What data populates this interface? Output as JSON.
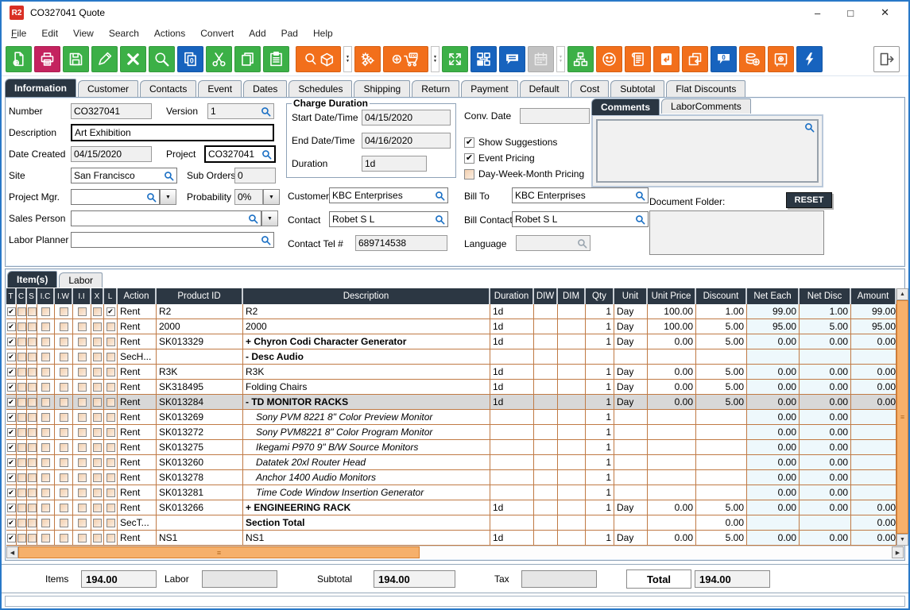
{
  "window": {
    "logo_text": "R2",
    "title": "CO327041 Quote",
    "minimize": "–",
    "maximize": "□",
    "close": "✕"
  },
  "menu": {
    "items": [
      "File",
      "Edit",
      "View",
      "Search",
      "Actions",
      "Convert",
      "Add",
      "Pad",
      "Help"
    ]
  },
  "toolbar": {
    "buttons": [
      {
        "name": "new-document",
        "icon": "doc-new",
        "color": "#3cb047"
      },
      {
        "name": "print",
        "icon": "printer",
        "color": "#c4235f"
      },
      {
        "name": "save",
        "icon": "floppy",
        "color": "#3cb047"
      },
      {
        "name": "edit",
        "icon": "pencil",
        "color": "#3cb047"
      },
      {
        "name": "delete",
        "icon": "x-mark",
        "color": "#3cb047"
      },
      {
        "name": "search",
        "icon": "magnifier",
        "color": "#3cb047"
      },
      {
        "name": "duplicate-count",
        "icon": "pages-zero",
        "color": "#1763be"
      },
      {
        "name": "cut",
        "icon": "scissors",
        "color": "#3cb047"
      },
      {
        "name": "copy",
        "icon": "copy-pages",
        "color": "#3cb047"
      },
      {
        "name": "paste",
        "icon": "clipboard-paste",
        "color": "#3cb047"
      },
      {
        "name": "search-items",
        "icon": "magnifier-box",
        "color": "#f26f1b",
        "wide": true,
        "dropdown": true,
        "gap": true
      },
      {
        "name": "settings",
        "icon": "gears",
        "color": "#f26f1b"
      },
      {
        "name": "create-po",
        "icon": "cart-po",
        "color": "#f26f1b",
        "wide": true,
        "dropdown": true
      },
      {
        "name": "expand",
        "icon": "expand-arrows",
        "color": "#3cb047"
      },
      {
        "name": "workflow",
        "icon": "workflow-blocks",
        "color": "#1763be"
      },
      {
        "name": "comments",
        "icon": "speech-bubble",
        "color": "#1763be"
      },
      {
        "name": "calendar",
        "icon": "calendar",
        "color": "#c2c2c2",
        "disabled": true,
        "dropdown": true
      },
      {
        "name": "hierarchy",
        "icon": "tree",
        "color": "#3cb047"
      },
      {
        "name": "contacts-smiley",
        "icon": "smiley",
        "color": "#f26f1b"
      },
      {
        "name": "notes-scroll",
        "icon": "scroll",
        "color": "#f26f1b"
      },
      {
        "name": "return-item",
        "icon": "return-arrow",
        "color": "#f26f1b"
      },
      {
        "name": "return-box",
        "icon": "box-return",
        "color": "#f26f1b"
      },
      {
        "name": "message-count",
        "icon": "bubble-zero",
        "color": "#1763be"
      },
      {
        "name": "add-funds",
        "icon": "coins-plus",
        "color": "#f26f1b"
      },
      {
        "name": "vault",
        "icon": "safe",
        "color": "#f26f1b"
      },
      {
        "name": "quick-actions",
        "icon": "lightning",
        "color": "#1763be"
      }
    ],
    "exit": {
      "name": "exit",
      "icon": "exit"
    }
  },
  "main_tabs": {
    "active": "Information",
    "items": [
      "Information",
      "Customer",
      "Contacts",
      "Event",
      "Dates",
      "Schedules",
      "Shipping",
      "Return",
      "Payment",
      "Default",
      "Cost",
      "Subtotal",
      "Flat Discounts"
    ]
  },
  "form": {
    "number_label": "Number",
    "number": "CO327041",
    "version_label": "Version",
    "version": "1",
    "description_label": "Description",
    "description": "Art Exhibition",
    "date_created_label": "Date Created",
    "date_created": "04/15/2020",
    "project_label": "Project",
    "project": "CO327041",
    "site_label": "Site",
    "site": "San Francisco",
    "sub_orders_label": "Sub Orders",
    "sub_orders": "0",
    "project_mgr_label": "Project Mgr.",
    "project_mgr": "",
    "probability_label": "Probability",
    "probability": "0%",
    "sales_person_label": "Sales Person",
    "sales_person": "",
    "labor_planner_label": "Labor Planner",
    "labor_planner": "",
    "charge_duration_legend": "Charge Duration",
    "start_label": "Start Date/Time",
    "start": "04/15/2020",
    "end_label": "End Date/Time",
    "end": "04/16/2020",
    "duration_label": "Duration",
    "duration": "1d",
    "conv_date_label": "Conv. Date",
    "conv_date": "",
    "checkboxes": [
      {
        "label": "Show Suggestions",
        "checked": true
      },
      {
        "label": "Event Pricing",
        "checked": true
      },
      {
        "label": "Day-Week-Month Pricing",
        "checked": false
      }
    ],
    "customer_label": "Customer",
    "customer": "KBC Enterprises",
    "bill_to_label": "Bill To",
    "bill_to": "KBC Enterprises",
    "contact_label": "Contact",
    "contact": "Robet S L",
    "bill_contact_label": "Bill Contact",
    "bill_contact": "Robet S L",
    "contact_tel_label": "Contact Tel #",
    "contact_tel": "689714538",
    "language_label": "Language",
    "language": ""
  },
  "comments": {
    "tabs": [
      "Comments",
      "LaborComments"
    ],
    "active": "Comments",
    "text": "",
    "document_folder_label": "Document Folder:",
    "reset_label": "RESET",
    "document_folder_text": ""
  },
  "items_section": {
    "tabs": [
      "Item(s)",
      "Labor"
    ],
    "active": "Item(s)"
  },
  "grid": {
    "checkbox_headers": [
      "T",
      "C",
      "S",
      "I.C",
      "I.W",
      "I.I",
      "X",
      "L"
    ],
    "headers": [
      "Action",
      "Product ID",
      "Description",
      "Duration",
      "DIW",
      "DIM",
      "Qty",
      "Unit",
      "Unit Price",
      "Discount",
      "Net Each",
      "Net Disc",
      "Amount"
    ],
    "rows": [
      {
        "t": true,
        "l": true,
        "action": "Rent",
        "product": "R2",
        "desc": "R2",
        "style": "normal",
        "duration": "1d",
        "diw": "",
        "dim": "",
        "qty": "1",
        "unit": "Day",
        "unit_price": "100.00",
        "discount": "1.00",
        "net_each": "99.00",
        "net_disc": "1.00",
        "amount": "99.00",
        "selected": false
      },
      {
        "t": true,
        "l": false,
        "action": "Rent",
        "product": "2000",
        "desc": "2000",
        "style": "normal",
        "duration": "1d",
        "diw": "",
        "dim": "",
        "qty": "1",
        "unit": "Day",
        "unit_price": "100.00",
        "discount": "5.00",
        "net_each": "95.00",
        "net_disc": "5.00",
        "amount": "95.00",
        "selected": false
      },
      {
        "t": true,
        "l": false,
        "action": "Rent",
        "product": "SK013329",
        "desc": "+  Chyron Codi Character Generator",
        "style": "bold",
        "duration": "1d",
        "diw": "",
        "dim": "",
        "qty": "1",
        "unit": "Day",
        "unit_price": "0.00",
        "discount": "5.00",
        "net_each": "0.00",
        "net_disc": "0.00",
        "amount": "0.00",
        "selected": false
      },
      {
        "t": true,
        "l": false,
        "action": "SecH...",
        "product": "",
        "desc": "-  Desc Audio",
        "style": "bold",
        "duration": "",
        "diw": "",
        "dim": "",
        "qty": "",
        "unit": "",
        "unit_price": "",
        "discount": "",
        "net_each": "",
        "net_disc": "",
        "amount": "",
        "selected": false
      },
      {
        "t": true,
        "l": false,
        "action": "Rent",
        "product": "R3K",
        "desc": "R3K",
        "style": "normal",
        "duration": "1d",
        "diw": "",
        "dim": "",
        "qty": "1",
        "unit": "Day",
        "unit_price": "0.00",
        "discount": "5.00",
        "net_each": "0.00",
        "net_disc": "0.00",
        "amount": "0.00",
        "selected": false
      },
      {
        "t": true,
        "l": false,
        "action": "Rent",
        "product": "SK318495",
        "desc": "Folding Chairs",
        "style": "normal",
        "duration": "1d",
        "diw": "",
        "dim": "",
        "qty": "1",
        "unit": "Day",
        "unit_price": "0.00",
        "discount": "5.00",
        "net_each": "0.00",
        "net_disc": "0.00",
        "amount": "0.00",
        "selected": false
      },
      {
        "t": true,
        "l": false,
        "action": "Rent",
        "product": "SK013284",
        "desc": "-  TD MONITOR RACKS",
        "style": "bold",
        "duration": "1d",
        "diw": "",
        "dim": "",
        "qty": "1",
        "unit": "Day",
        "unit_price": "0.00",
        "discount": "5.00",
        "net_each": "0.00",
        "net_disc": "0.00",
        "amount": "0.00",
        "selected": true
      },
      {
        "t": true,
        "l": false,
        "action": "Rent",
        "product": "SK013269",
        "desc": "Sony PVM 8221 8\" Color Preview Monitor",
        "style": "italic",
        "duration": "",
        "diw": "",
        "dim": "",
        "qty": "1",
        "unit": "",
        "unit_price": "",
        "discount": "",
        "net_each": "0.00",
        "net_disc": "0.00",
        "amount": "",
        "selected": false
      },
      {
        "t": true,
        "l": false,
        "action": "Rent",
        "product": "SK013272",
        "desc": "Sony PVM8221 8\" Color Program Monitor",
        "style": "italic",
        "duration": "",
        "diw": "",
        "dim": "",
        "qty": "1",
        "unit": "",
        "unit_price": "",
        "discount": "",
        "net_each": "0.00",
        "net_disc": "0.00",
        "amount": "",
        "selected": false
      },
      {
        "t": true,
        "l": false,
        "action": "Rent",
        "product": "SK013275",
        "desc": "Ikegami P970 9\" B/W Source Monitors",
        "style": "italic",
        "duration": "",
        "diw": "",
        "dim": "",
        "qty": "1",
        "unit": "",
        "unit_price": "",
        "discount": "",
        "net_each": "0.00",
        "net_disc": "0.00",
        "amount": "",
        "selected": false
      },
      {
        "t": true,
        "l": false,
        "action": "Rent",
        "product": "SK013260",
        "desc": "Datatek 20xl Router Head",
        "style": "italic",
        "duration": "",
        "diw": "",
        "dim": "",
        "qty": "1",
        "unit": "",
        "unit_price": "",
        "discount": "",
        "net_each": "0.00",
        "net_disc": "0.00",
        "amount": "",
        "selected": false
      },
      {
        "t": true,
        "l": false,
        "action": "Rent",
        "product": "SK013278",
        "desc": "Anchor 1400 Audio Monitors",
        "style": "italic",
        "duration": "",
        "diw": "",
        "dim": "",
        "qty": "1",
        "unit": "",
        "unit_price": "",
        "discount": "",
        "net_each": "0.00",
        "net_disc": "0.00",
        "amount": "",
        "selected": false
      },
      {
        "t": true,
        "l": false,
        "action": "Rent",
        "product": "SK013281",
        "desc": "Time Code Window Insertion Generator",
        "style": "italic",
        "duration": "",
        "diw": "",
        "dim": "",
        "qty": "1",
        "unit": "",
        "unit_price": "",
        "discount": "",
        "net_each": "0.00",
        "net_disc": "0.00",
        "amount": "",
        "selected": false
      },
      {
        "t": true,
        "l": false,
        "action": "Rent",
        "product": "SK013266",
        "desc": "+  ENGINEERING RACK",
        "style": "bold",
        "duration": "1d",
        "diw": "",
        "dim": "",
        "qty": "1",
        "unit": "Day",
        "unit_price": "0.00",
        "discount": "5.00",
        "net_each": "0.00",
        "net_disc": "0.00",
        "amount": "0.00",
        "selected": false
      },
      {
        "t": true,
        "l": false,
        "action": "SecT...",
        "product": "",
        "desc": "Section Total",
        "style": "bold",
        "duration": "",
        "diw": "",
        "dim": "",
        "qty": "",
        "unit": "",
        "unit_price": "",
        "discount": "0.00",
        "net_each": "",
        "net_disc": "",
        "amount": "0.00",
        "selected": false
      },
      {
        "t": true,
        "l": false,
        "action": "Rent",
        "product": "NS1",
        "desc": "NS1",
        "style": "normal",
        "duration": "1d",
        "diw": "",
        "dim": "",
        "qty": "1",
        "unit": "Day",
        "unit_price": "0.00",
        "discount": "5.00",
        "net_each": "0.00",
        "net_disc": "0.00",
        "amount": "0.00",
        "selected": false
      }
    ]
  },
  "totals": {
    "items_label": "Items",
    "items": "194.00",
    "labor_label": "Labor",
    "labor": "",
    "subtotal_label": "Subtotal",
    "subtotal": "194.00",
    "tax_label": "Tax",
    "tax": "",
    "total_label": "Total",
    "total": "194.00"
  }
}
